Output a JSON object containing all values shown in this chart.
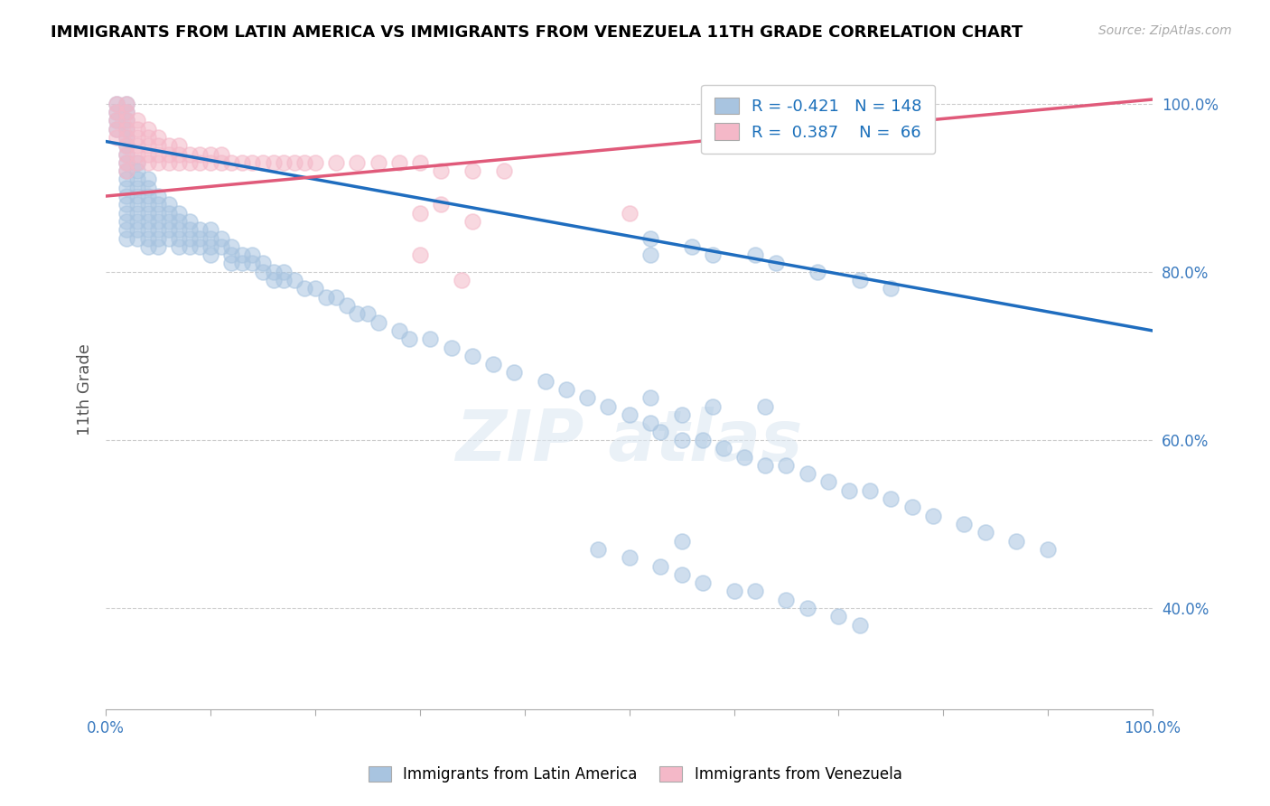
{
  "title": "IMMIGRANTS FROM LATIN AMERICA VS IMMIGRANTS FROM VENEZUELA 11TH GRADE CORRELATION CHART",
  "source_text": "Source: ZipAtlas.com",
  "ylabel": "11th Grade",
  "xlim": [
    0.0,
    1.0
  ],
  "ylim": [
    0.28,
    1.04
  ],
  "blue_color": "#a8c4e0",
  "pink_color": "#f4b8c8",
  "blue_line_color": "#1f6dbf",
  "pink_line_color": "#e05a7a",
  "R_blue": -0.421,
  "N_blue": 148,
  "R_pink": 0.387,
  "N_pink": 66,
  "legend_color": "#1a6fba",
  "blue_line_y_start": 0.955,
  "blue_line_y_end": 0.73,
  "pink_line_y_start": 0.89,
  "pink_line_y_end": 1.005,
  "blue_scatter_x": [
    0.01,
    0.01,
    0.01,
    0.01,
    0.02,
    0.02,
    0.02,
    0.02,
    0.02,
    0.02,
    0.02,
    0.02,
    0.02,
    0.02,
    0.02,
    0.02,
    0.02,
    0.02,
    0.02,
    0.02,
    0.02,
    0.03,
    0.03,
    0.03,
    0.03,
    0.03,
    0.03,
    0.03,
    0.03,
    0.03,
    0.03,
    0.04,
    0.04,
    0.04,
    0.04,
    0.04,
    0.04,
    0.04,
    0.04,
    0.04,
    0.05,
    0.05,
    0.05,
    0.05,
    0.05,
    0.05,
    0.05,
    0.06,
    0.06,
    0.06,
    0.06,
    0.06,
    0.07,
    0.07,
    0.07,
    0.07,
    0.07,
    0.08,
    0.08,
    0.08,
    0.08,
    0.09,
    0.09,
    0.09,
    0.1,
    0.1,
    0.1,
    0.1,
    0.11,
    0.11,
    0.12,
    0.12,
    0.12,
    0.13,
    0.13,
    0.14,
    0.14,
    0.15,
    0.15,
    0.16,
    0.16,
    0.17,
    0.17,
    0.18,
    0.19,
    0.2,
    0.21,
    0.22,
    0.23,
    0.24,
    0.25,
    0.26,
    0.28,
    0.29,
    0.31,
    0.33,
    0.35,
    0.37,
    0.39,
    0.42,
    0.44,
    0.46,
    0.48,
    0.5,
    0.52,
    0.53,
    0.55,
    0.57,
    0.59,
    0.61,
    0.63,
    0.65,
    0.67,
    0.69,
    0.71,
    0.73,
    0.75,
    0.77,
    0.79,
    0.82,
    0.84,
    0.87,
    0.9,
    0.52,
    0.52,
    0.56,
    0.58,
    0.62,
    0.64,
    0.68,
    0.72,
    0.75,
    0.52,
    0.55,
    0.58,
    0.63,
    0.55,
    0.47,
    0.5,
    0.53,
    0.55,
    0.57,
    0.6,
    0.62,
    0.65,
    0.67,
    0.7,
    0.72
  ],
  "blue_scatter_y": [
    0.97,
    0.98,
    0.99,
    1.0,
    0.93,
    0.94,
    0.95,
    0.96,
    0.97,
    0.98,
    0.99,
    1.0,
    0.91,
    0.92,
    0.9,
    0.89,
    0.88,
    0.87,
    0.86,
    0.85,
    0.84,
    0.93,
    0.92,
    0.91,
    0.9,
    0.89,
    0.88,
    0.87,
    0.86,
    0.85,
    0.84,
    0.91,
    0.9,
    0.89,
    0.88,
    0.87,
    0.86,
    0.85,
    0.84,
    0.83,
    0.89,
    0.88,
    0.87,
    0.86,
    0.85,
    0.84,
    0.83,
    0.88,
    0.87,
    0.86,
    0.85,
    0.84,
    0.87,
    0.86,
    0.85,
    0.84,
    0.83,
    0.86,
    0.85,
    0.84,
    0.83,
    0.85,
    0.84,
    0.83,
    0.85,
    0.84,
    0.83,
    0.82,
    0.84,
    0.83,
    0.83,
    0.82,
    0.81,
    0.82,
    0.81,
    0.82,
    0.81,
    0.81,
    0.8,
    0.8,
    0.79,
    0.8,
    0.79,
    0.79,
    0.78,
    0.78,
    0.77,
    0.77,
    0.76,
    0.75,
    0.75,
    0.74,
    0.73,
    0.72,
    0.72,
    0.71,
    0.7,
    0.69,
    0.68,
    0.67,
    0.66,
    0.65,
    0.64,
    0.63,
    0.62,
    0.61,
    0.6,
    0.6,
    0.59,
    0.58,
    0.57,
    0.57,
    0.56,
    0.55,
    0.54,
    0.54,
    0.53,
    0.52,
    0.51,
    0.5,
    0.49,
    0.48,
    0.47,
    0.84,
    0.82,
    0.83,
    0.82,
    0.82,
    0.81,
    0.8,
    0.79,
    0.78,
    0.65,
    0.63,
    0.64,
    0.64,
    0.48,
    0.47,
    0.46,
    0.45,
    0.44,
    0.43,
    0.42,
    0.42,
    0.41,
    0.4,
    0.39,
    0.38
  ],
  "pink_scatter_x": [
    0.01,
    0.01,
    0.01,
    0.01,
    0.01,
    0.02,
    0.02,
    0.02,
    0.02,
    0.02,
    0.02,
    0.02,
    0.02,
    0.02,
    0.03,
    0.03,
    0.03,
    0.03,
    0.03,
    0.03,
    0.04,
    0.04,
    0.04,
    0.04,
    0.04,
    0.05,
    0.05,
    0.05,
    0.05,
    0.06,
    0.06,
    0.06,
    0.07,
    0.07,
    0.07,
    0.08,
    0.08,
    0.09,
    0.09,
    0.1,
    0.1,
    0.11,
    0.11,
    0.12,
    0.13,
    0.14,
    0.15,
    0.16,
    0.17,
    0.18,
    0.19,
    0.2,
    0.22,
    0.24,
    0.26,
    0.28,
    0.3,
    0.32,
    0.35,
    0.38,
    0.3,
    0.32,
    0.35,
    0.5,
    0.3,
    0.34
  ],
  "pink_scatter_y": [
    0.97,
    0.98,
    0.99,
    1.0,
    0.96,
    0.93,
    0.94,
    0.95,
    0.96,
    0.97,
    0.98,
    0.99,
    1.0,
    0.92,
    0.93,
    0.94,
    0.95,
    0.96,
    0.97,
    0.98,
    0.93,
    0.94,
    0.95,
    0.96,
    0.97,
    0.93,
    0.94,
    0.95,
    0.96,
    0.93,
    0.94,
    0.95,
    0.93,
    0.94,
    0.95,
    0.93,
    0.94,
    0.93,
    0.94,
    0.93,
    0.94,
    0.93,
    0.94,
    0.93,
    0.93,
    0.93,
    0.93,
    0.93,
    0.93,
    0.93,
    0.93,
    0.93,
    0.93,
    0.93,
    0.93,
    0.93,
    0.93,
    0.92,
    0.92,
    0.92,
    0.87,
    0.88,
    0.86,
    0.87,
    0.82,
    0.79
  ]
}
